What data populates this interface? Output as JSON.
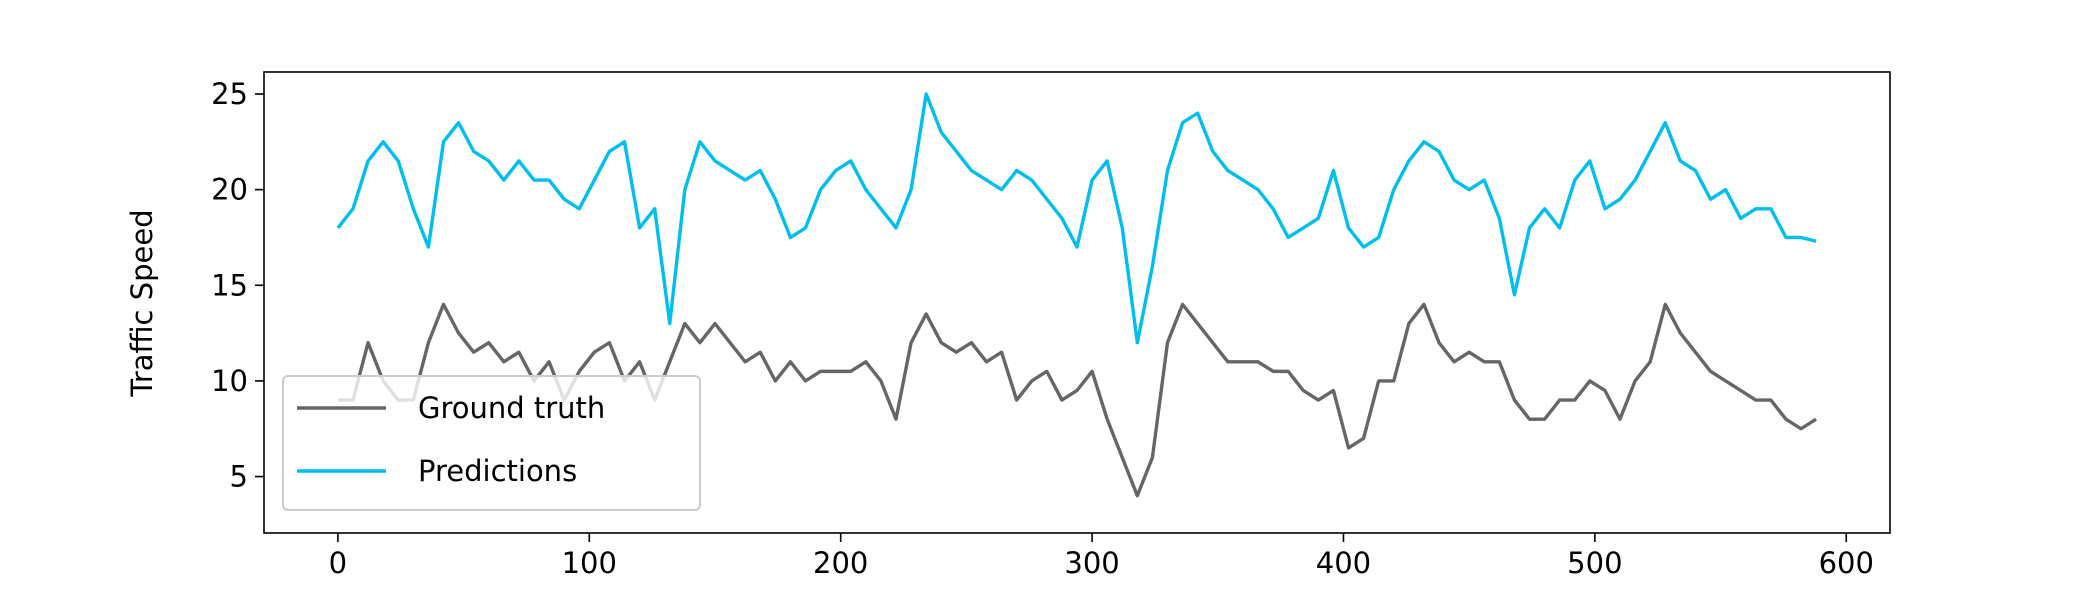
{
  "chart_data": {
    "type": "line",
    "ylabel": "Traffic Speed",
    "x": [
      0,
      6,
      12,
      18,
      24,
      30,
      36,
      42,
      48,
      54,
      60,
      66,
      72,
      78,
      84,
      90,
      96,
      102,
      108,
      114,
      120,
      126,
      132,
      138,
      144,
      150,
      156,
      162,
      168,
      174,
      180,
      186,
      192,
      198,
      204,
      210,
      216,
      222,
      228,
      234,
      240,
      246,
      252,
      258,
      264,
      270,
      276,
      282,
      288,
      294,
      300,
      306,
      312,
      318,
      324,
      330,
      336,
      342,
      348,
      354,
      360,
      366,
      372,
      378,
      384,
      390,
      396,
      402,
      408,
      414,
      420,
      426,
      432,
      438,
      444,
      450,
      456,
      462,
      468,
      474,
      480,
      486,
      492,
      498,
      504,
      510,
      516,
      522,
      528,
      534,
      540,
      546,
      552,
      558,
      564,
      570,
      576,
      582,
      588
    ],
    "series": [
      {
        "name": "Ground truth",
        "color": "#666666",
        "values": [
          9,
          9,
          12,
          10,
          9,
          9,
          12,
          14,
          12.5,
          11.5,
          12,
          11,
          11.5,
          10,
          11,
          9,
          10.5,
          11.5,
          12,
          10,
          11,
          9,
          11,
          13,
          12,
          13,
          12,
          11,
          11.5,
          10,
          11,
          10,
          10.5,
          10.5,
          10.5,
          11,
          10,
          8,
          12,
          13.5,
          12,
          11.5,
          12,
          11,
          11.5,
          9,
          10,
          10.5,
          9,
          9.5,
          10.5,
          8,
          6,
          4,
          6,
          12,
          14,
          13,
          12,
          11,
          11,
          11,
          10.5,
          10.5,
          9.5,
          9,
          9.5,
          6.5,
          7,
          10,
          10,
          13,
          14,
          12,
          11,
          11.5,
          11,
          11,
          9,
          8,
          8,
          9,
          9,
          10,
          9.5,
          8,
          10,
          11,
          14,
          12.5,
          11.5,
          10.5,
          10,
          9.5,
          9,
          9,
          8,
          7.5,
          8
        ]
      },
      {
        "name": "Predictions",
        "color": "#00bfef",
        "values": [
          18,
          19,
          21.5,
          22.5,
          21.5,
          19,
          17,
          22.5,
          23.5,
          22,
          21.5,
          20.5,
          21.5,
          20.5,
          20.5,
          19.5,
          19,
          20.5,
          22,
          22.5,
          18,
          19,
          13,
          20,
          22.5,
          21.5,
          21,
          20.5,
          21,
          19.5,
          17.5,
          18,
          20,
          21,
          21.5,
          20,
          19,
          18,
          20,
          25,
          23,
          22,
          21,
          20.5,
          20,
          21,
          20.5,
          19.5,
          18.5,
          17,
          20.5,
          21.5,
          18,
          12,
          16,
          21,
          23.5,
          24,
          22,
          21,
          20.5,
          20,
          19,
          17.5,
          18,
          18.5,
          21,
          18,
          17,
          17.5,
          20,
          21.5,
          22.5,
          22,
          20.5,
          20,
          20.5,
          18.5,
          14.5,
          18,
          19,
          18,
          20.5,
          21.5,
          19,
          19.5,
          20.5,
          22,
          23.5,
          21.5,
          21,
          19.5,
          20,
          18.5,
          19,
          19,
          17.5,
          17.5,
          17.3
        ]
      }
    ],
    "xlim": [
      -29.4,
      617.4
    ],
    "ylim": [
      2.05,
      26.15
    ],
    "xticks": [
      0,
      100,
      200,
      300,
      400,
      500,
      600
    ],
    "yticks": [
      5,
      10,
      15,
      20,
      25
    ],
    "legend": "lower left"
  }
}
